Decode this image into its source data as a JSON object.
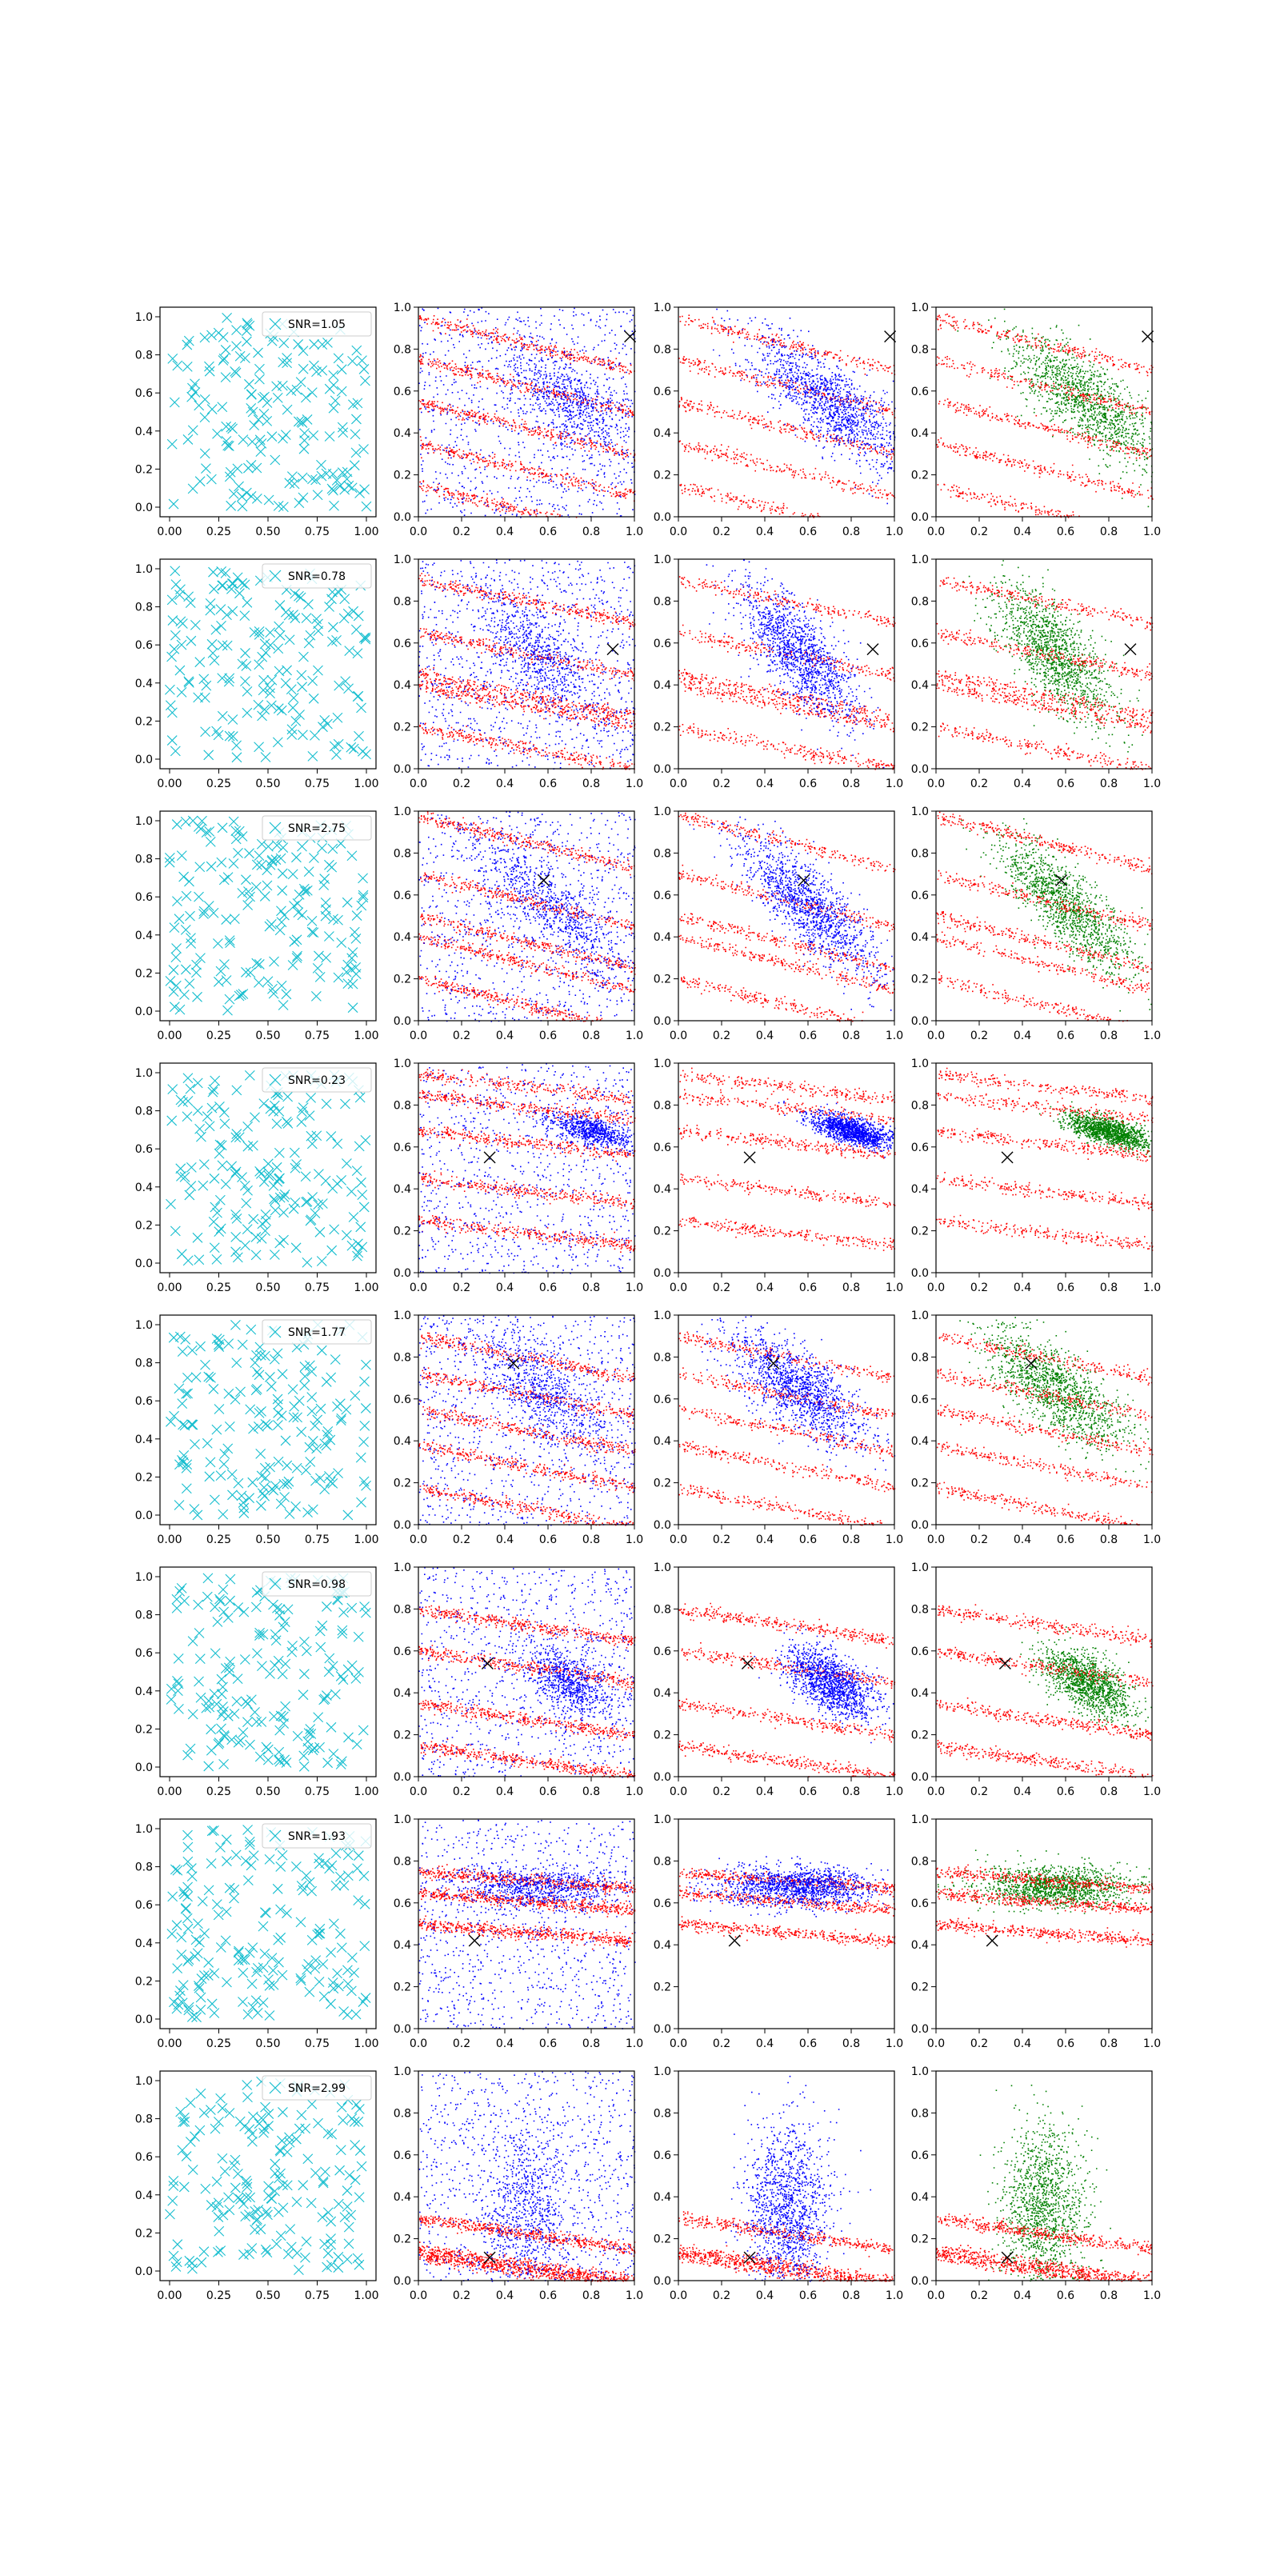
{
  "chart_data": {
    "type": "scatter",
    "layout": {
      "rows": 8,
      "cols": 4
    },
    "x_ticks_first_col": [
      "0.00",
      "0.25",
      "0.50",
      "0.75",
      "1.00"
    ],
    "x_ticks_other_cols": [
      "0.0",
      "0.2",
      "0.4",
      "0.6",
      "0.8",
      "1.0"
    ],
    "y_ticks_first_col": [
      "0.0",
      "0.2",
      "0.4",
      "0.6",
      "0.8",
      "1.0"
    ],
    "y_ticks_other_cols": [
      "0.0",
      "0.2",
      "0.4",
      "0.6",
      "0.8",
      "1.0"
    ],
    "xlim": [
      0,
      1
    ],
    "ylim": [
      0,
      1
    ],
    "colors": {
      "cyan": "#17becf",
      "red": "#ff0000",
      "blue": "#0000ff",
      "green": "#008000",
      "marker": "#000000"
    },
    "panel_kinds": [
      "uniform random cyan x markers (legend: SNR)",
      "red and blue point clouds with black x marker",
      "red and blue point clouds with black x marker",
      "red and green point clouds with black x marker"
    ],
    "rows": [
      {
        "legend": "SNR=1.05",
        "marker": [
          0.98,
          0.86
        ]
      },
      {
        "legend": "SNR=0.78",
        "marker": [
          0.9,
          0.57
        ]
      },
      {
        "legend": "SNR=2.75",
        "marker": [
          0.58,
          0.67
        ]
      },
      {
        "legend": "SNR=0.23",
        "marker": [
          0.33,
          0.55
        ]
      },
      {
        "legend": "SNR=1.77",
        "marker": [
          0.44,
          0.77
        ]
      },
      {
        "legend": "SNR=0.98",
        "marker": [
          0.32,
          0.54
        ]
      },
      {
        "legend": "SNR=1.93",
        "marker": [
          0.26,
          0.42
        ]
      },
      {
        "legend": "SNR=2.99",
        "marker": [
          0.33,
          0.11
        ]
      }
    ]
  }
}
